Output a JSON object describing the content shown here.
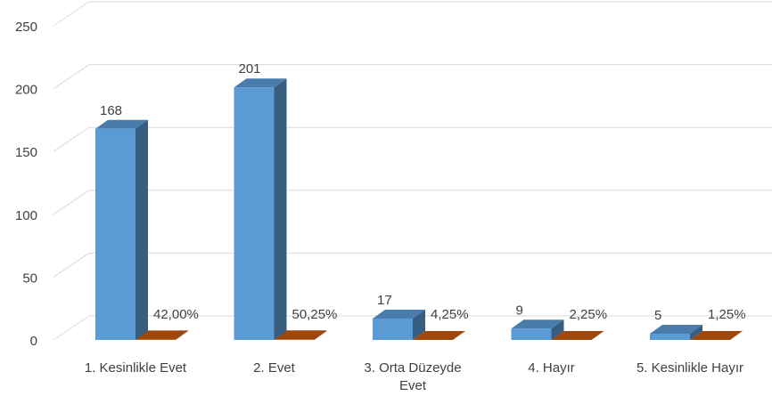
{
  "chart_data": {
    "type": "bar3d",
    "categories": [
      "1. Kesinlikle Evet",
      "2. Evet",
      "3. Orta Düzeyde Evet",
      "4. Hayır",
      "5. Kesinlikle Hayır"
    ],
    "series": [
      {
        "color": "#5b9bd5",
        "values": [
          168,
          201,
          17,
          9,
          5
        ]
      },
      {
        "color": "#c55a11",
        "values": [
          0.42,
          0.5025,
          0.0425,
          0.0225,
          0.0125
        ],
        "value_labels": [
          "42,00%",
          "50,25%",
          "4,25%",
          "2,25%",
          "1,25%"
        ]
      }
    ],
    "ylim": [
      0,
      250
    ],
    "yticks": [
      0,
      50,
      100,
      150,
      200,
      250
    ],
    "grid": true
  }
}
